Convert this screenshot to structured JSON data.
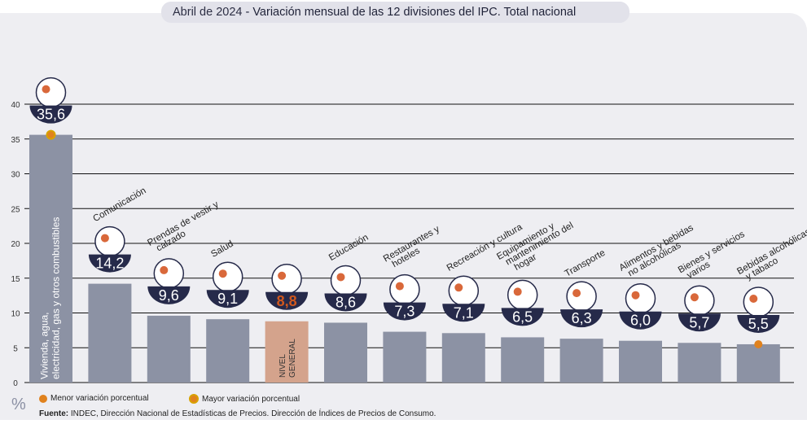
{
  "title_prefix": "Abril de 2024",
  "title_main": " - Variación mensual de las 12 divisiones del IPC. Total nacional",
  "chart_data": {
    "type": "bar",
    "title": "Abril de 2024 - Variación mensual de las 12 divisiones del IPC. Total nacional",
    "ylabel": "%",
    "ylim": [
      0,
      40
    ],
    "yticks": [
      "0",
      "5",
      "10",
      "15",
      "20",
      "25",
      "30",
      "35",
      "40"
    ],
    "categories": [
      "Vivienda, agua, electricidad, gas y otros combustibles",
      "Comunicación",
      "Prendas de vestir y calzado",
      "Salud",
      "NIVEL GENERAL",
      "Educación",
      "Restaurantes y hoteles",
      "Recreación y cultura",
      "Equipamiento y mantenimiento del hogar",
      "Transporte",
      "Alimentos y bebidas no alcohólicas",
      "Bienes y servicios varios",
      "Bebidas alcohólicas y tabaco"
    ],
    "values": [
      35.6,
      14.2,
      9.6,
      9.1,
      8.8,
      8.6,
      7.3,
      7.1,
      6.5,
      6.3,
      6.0,
      5.7,
      5.5
    ],
    "value_labels": [
      "35,6",
      "14,2",
      "9,6",
      "9,1",
      "8,8",
      "8,6",
      "7,3",
      "7,1",
      "6,5",
      "6,3",
      "6,0",
      "5,7",
      "5,5"
    ],
    "highlight_index": 4,
    "max_index": 0,
    "min_index": 12,
    "grid": true,
    "colors": {
      "bar": "#8c92a4",
      "general": "#d4a38c",
      "badge": "#262a4a",
      "general_text": "#d0581e",
      "marker": "#e0821e"
    }
  },
  "legend": {
    "menor": "Menor variación porcentual",
    "mayor": "Mayor variación porcentual"
  },
  "source_label": "Fuente:",
  "source_text": " INDEC, Dirección Nacional de Estadísticas de Precios. Dirección de Índices de Precios de Consumo."
}
